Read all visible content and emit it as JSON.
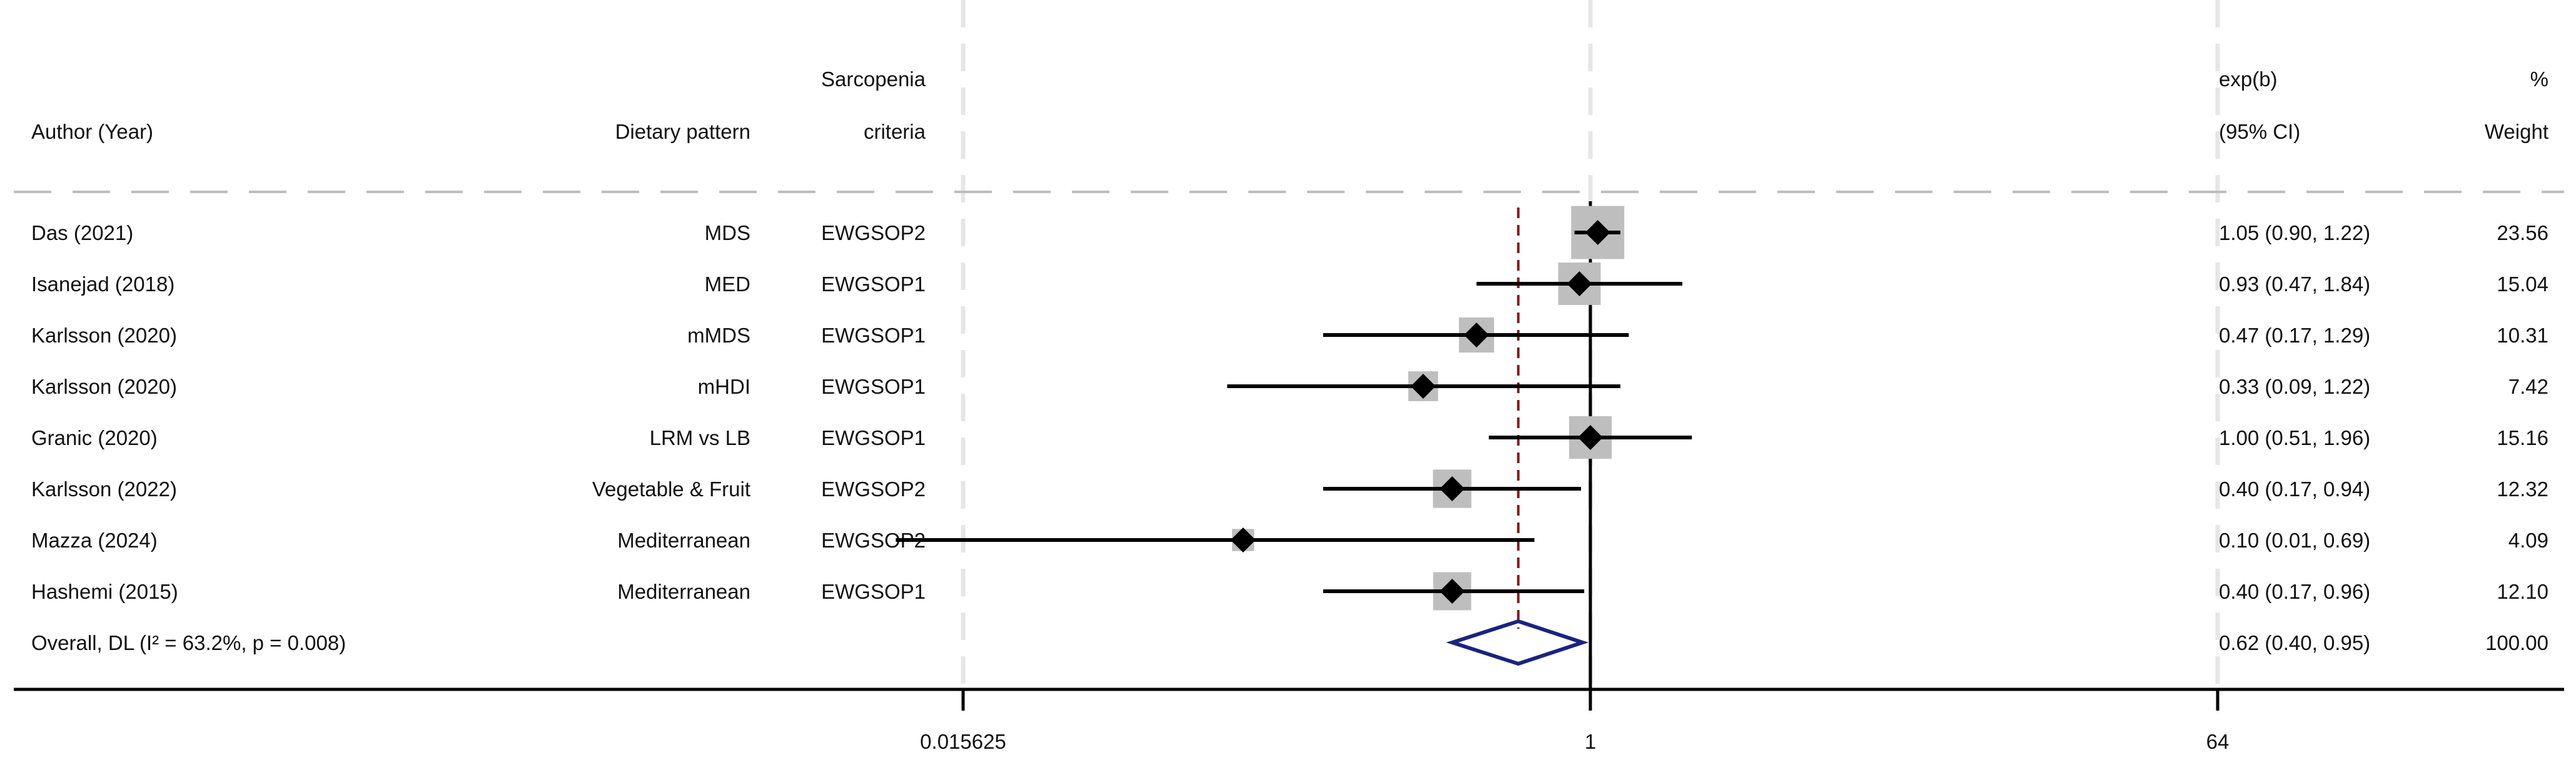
{
  "chart_data": {
    "type": "forest",
    "scale": "log2",
    "headers": {
      "author": "Author (Year)",
      "pattern": "Dietary pattern",
      "criteria_line1": "Sarcopenia",
      "criteria_line2": "criteria",
      "effect_line1": "exp(b)",
      "effect_line2": "(95% CI)",
      "weight_line1": "%",
      "weight_line2": "Weight"
    },
    "studies": [
      {
        "author": "Das (2021)",
        "pattern": "MDS",
        "criteria": "EWGSOP2",
        "est": 1.05,
        "lo": 0.9,
        "hi": 1.22,
        "ci_text": "1.05 (0.90, 1.22)",
        "weight": 23.56,
        "weight_text": "23.56"
      },
      {
        "author": "Isanejad (2018)",
        "pattern": "MED",
        "criteria": "EWGSOP1",
        "est": 0.93,
        "lo": 0.47,
        "hi": 1.84,
        "ci_text": "0.93 (0.47, 1.84)",
        "weight": 15.04,
        "weight_text": "15.04"
      },
      {
        "author": "Karlsson (2020)",
        "pattern": "mMDS",
        "criteria": "EWGSOP1",
        "est": 0.47,
        "lo": 0.17,
        "hi": 1.29,
        "ci_text": "0.47 (0.17, 1.29)",
        "weight": 10.31,
        "weight_text": "10.31"
      },
      {
        "author": "Karlsson (2020)",
        "pattern": "mHDI",
        "criteria": "EWGSOP1",
        "est": 0.33,
        "lo": 0.09,
        "hi": 1.22,
        "ci_text": "0.33 (0.09, 1.22)",
        "weight": 7.42,
        "weight_text": "7.42"
      },
      {
        "author": "Granic (2020)",
        "pattern": "LRM vs LB",
        "criteria": "EWGSOP1",
        "est": 1.0,
        "lo": 0.51,
        "hi": 1.96,
        "ci_text": "1.00 (0.51, 1.96)",
        "weight": 15.16,
        "weight_text": "15.16"
      },
      {
        "author": "Karlsson (2022)",
        "pattern": "Vegetable & Fruit",
        "criteria": "EWGSOP2",
        "est": 0.4,
        "lo": 0.17,
        "hi": 0.94,
        "ci_text": "0.40 (0.17, 0.94)",
        "weight": 12.32,
        "weight_text": "12.32"
      },
      {
        "author": "Mazza (2024)",
        "pattern": "Mediterranean",
        "criteria": "EWGSOP2",
        "est": 0.1,
        "lo": 0.01,
        "hi": 0.69,
        "ci_text": "0.10 (0.01, 0.69)",
        "weight": 4.09,
        "weight_text": "4.09"
      },
      {
        "author": "Hashemi (2015)",
        "pattern": "Mediterranean",
        "criteria": "EWGSOP1",
        "est": 0.4,
        "lo": 0.17,
        "hi": 0.96,
        "ci_text": "0.40 (0.17, 0.96)",
        "weight": 12.1,
        "weight_text": "12.10"
      }
    ],
    "overall": {
      "label": "Overall, DL (I² = 63.2%, p = 0.008)",
      "est": 0.62,
      "lo": 0.4,
      "hi": 0.95,
      "ci_text": "0.62 (0.40, 0.95)",
      "weight_text": "100.00"
    },
    "x_ticks": [
      {
        "value": 0.015625,
        "label": "0.015625"
      },
      {
        "value": 1,
        "label": "1"
      },
      {
        "value": 64,
        "label": "64"
      }
    ],
    "xlim": [
      0.015625,
      64
    ],
    "reference_line": 1,
    "colors": {
      "marker": "#000000",
      "box": "#bebebe",
      "overall_diamond": "#1a237e",
      "overall_line": "#7b1c1c",
      "grid": "#e6e6e6",
      "divider": "#bdbdbd"
    }
  }
}
